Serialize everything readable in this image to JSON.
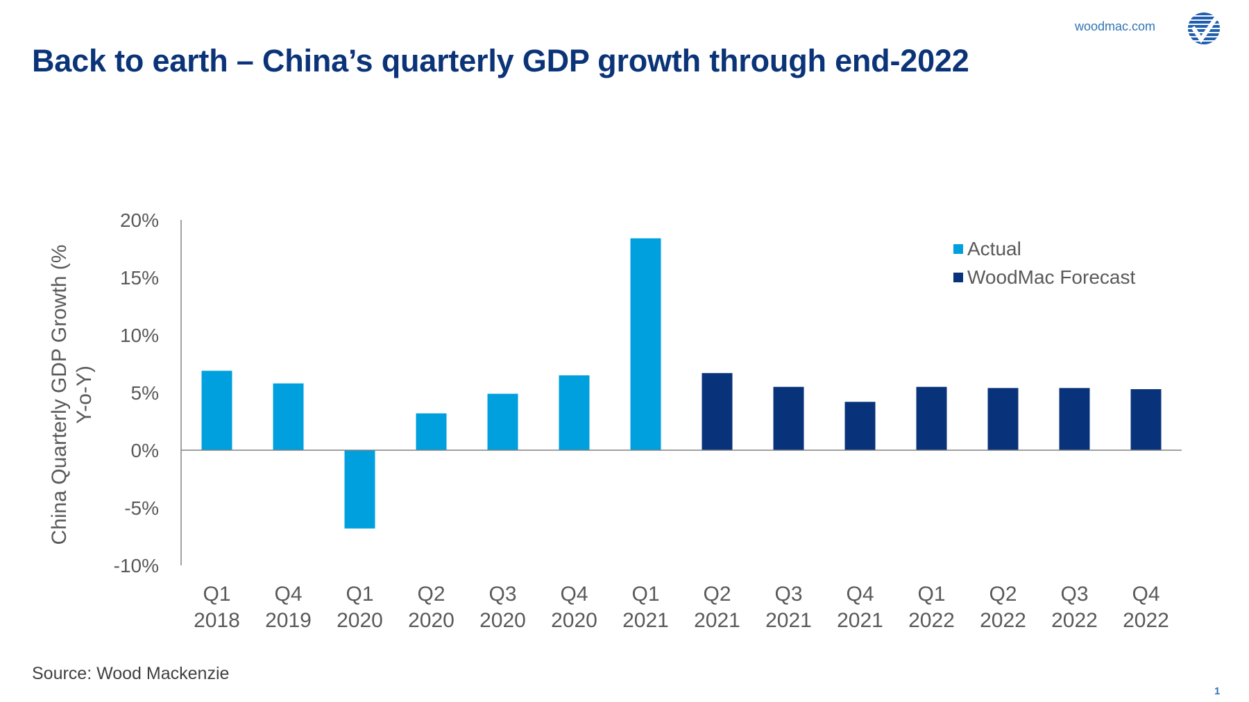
{
  "header": {
    "title": "Back to earth – China’s quarterly GDP growth through end-2022",
    "site": "woodmac.com",
    "logo": "wood-mackenzie-check-globe"
  },
  "footer": {
    "source": "Source: Wood Mackenzie",
    "page_number": "1"
  },
  "chart_data": {
    "type": "bar",
    "title": "",
    "ylabel_lines": [
      "China Quarterly GDP Growth (%",
      "Y-o-Y)"
    ],
    "xlabel": "",
    "ylim": [
      -10,
      20
    ],
    "yticks": [
      20,
      15,
      10,
      5,
      0,
      -5,
      -10
    ],
    "ytick_labels": [
      "20%",
      "15%",
      "10%",
      "5%",
      "0%",
      "-5%",
      "-10%"
    ],
    "grid": false,
    "legend_position": "top-right",
    "categories": [
      [
        "Q1",
        "2018"
      ],
      [
        "Q4",
        "2019"
      ],
      [
        "Q1",
        "2020"
      ],
      [
        "Q2",
        "2020"
      ],
      [
        "Q3",
        "2020"
      ],
      [
        "Q4",
        "2020"
      ],
      [
        "Q1",
        "2021"
      ],
      [
        "Q2",
        "2021"
      ],
      [
        "Q3",
        "2021"
      ],
      [
        "Q4",
        "2021"
      ],
      [
        "Q1",
        "2022"
      ],
      [
        "Q2",
        "2022"
      ],
      [
        "Q3",
        "2022"
      ],
      [
        "Q4",
        "2022"
      ]
    ],
    "series": [
      {
        "name": "Actual",
        "color": "#00a0de",
        "values": [
          6.9,
          5.8,
          -6.8,
          3.2,
          4.9,
          6.5,
          18.4,
          null,
          null,
          null,
          null,
          null,
          null,
          null
        ]
      },
      {
        "name": "WoodMac Forecast",
        "color": "#08337a",
        "values": [
          null,
          null,
          null,
          null,
          null,
          null,
          null,
          6.7,
          5.5,
          4.2,
          5.5,
          5.4,
          5.4,
          5.3
        ]
      }
    ]
  }
}
